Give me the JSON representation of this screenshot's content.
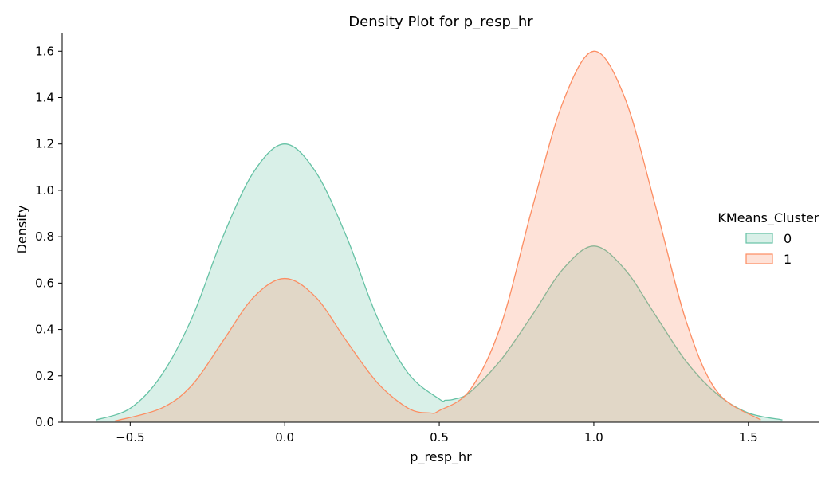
{
  "chart_data": {
    "type": "area",
    "title": "Density Plot for p_resp_hr",
    "xlabel": "p_resp_hr",
    "ylabel": "Density",
    "xlim": [
      -0.72,
      1.73
    ],
    "ylim": [
      0,
      1.68
    ],
    "xticks": [
      -0.5,
      0.0,
      0.5,
      1.0,
      1.5
    ],
    "xtick_labels": [
      "−0.5",
      "0.0",
      "0.5",
      "1.0",
      "1.5"
    ],
    "yticks": [
      0.0,
      0.2,
      0.4,
      0.6,
      0.8,
      1.0,
      1.2,
      1.4,
      1.6
    ],
    "ytick_labels": [
      "0.0",
      "0.2",
      "0.4",
      "0.6",
      "0.8",
      "1.0",
      "1.2",
      "1.4",
      "1.6"
    ],
    "grid": false,
    "legend": {
      "title": "KMeans_Cluster",
      "placement": "right"
    },
    "series": [
      {
        "name": "0",
        "color": "#66c2a5",
        "x": [
          -0.61,
          -0.5,
          -0.4,
          -0.3,
          -0.2,
          -0.1,
          0.0,
          0.1,
          0.2,
          0.3,
          0.4,
          0.5,
          0.52,
          0.55,
          0.6,
          0.7,
          0.8,
          0.9,
          1.0,
          1.1,
          1.2,
          1.3,
          1.4,
          1.5,
          1.61
        ],
        "y": [
          0.01,
          0.06,
          0.2,
          0.45,
          0.8,
          1.08,
          1.2,
          1.08,
          0.8,
          0.45,
          0.21,
          0.1,
          0.095,
          0.1,
          0.13,
          0.27,
          0.46,
          0.66,
          0.76,
          0.66,
          0.46,
          0.26,
          0.12,
          0.04,
          0.01
        ]
      },
      {
        "name": "1",
        "color": "#fc8d62",
        "x": [
          -0.55,
          -0.4,
          -0.3,
          -0.2,
          -0.1,
          0.0,
          0.1,
          0.2,
          0.3,
          0.4,
          0.47,
          0.5,
          0.6,
          0.7,
          0.8,
          0.9,
          1.0,
          1.1,
          1.2,
          1.3,
          1.4,
          1.54
        ],
        "y": [
          0.005,
          0.06,
          0.16,
          0.35,
          0.54,
          0.62,
          0.54,
          0.35,
          0.17,
          0.06,
          0.04,
          0.05,
          0.14,
          0.42,
          0.92,
          1.38,
          1.6,
          1.4,
          0.93,
          0.43,
          0.13,
          0.01
        ]
      }
    ]
  }
}
